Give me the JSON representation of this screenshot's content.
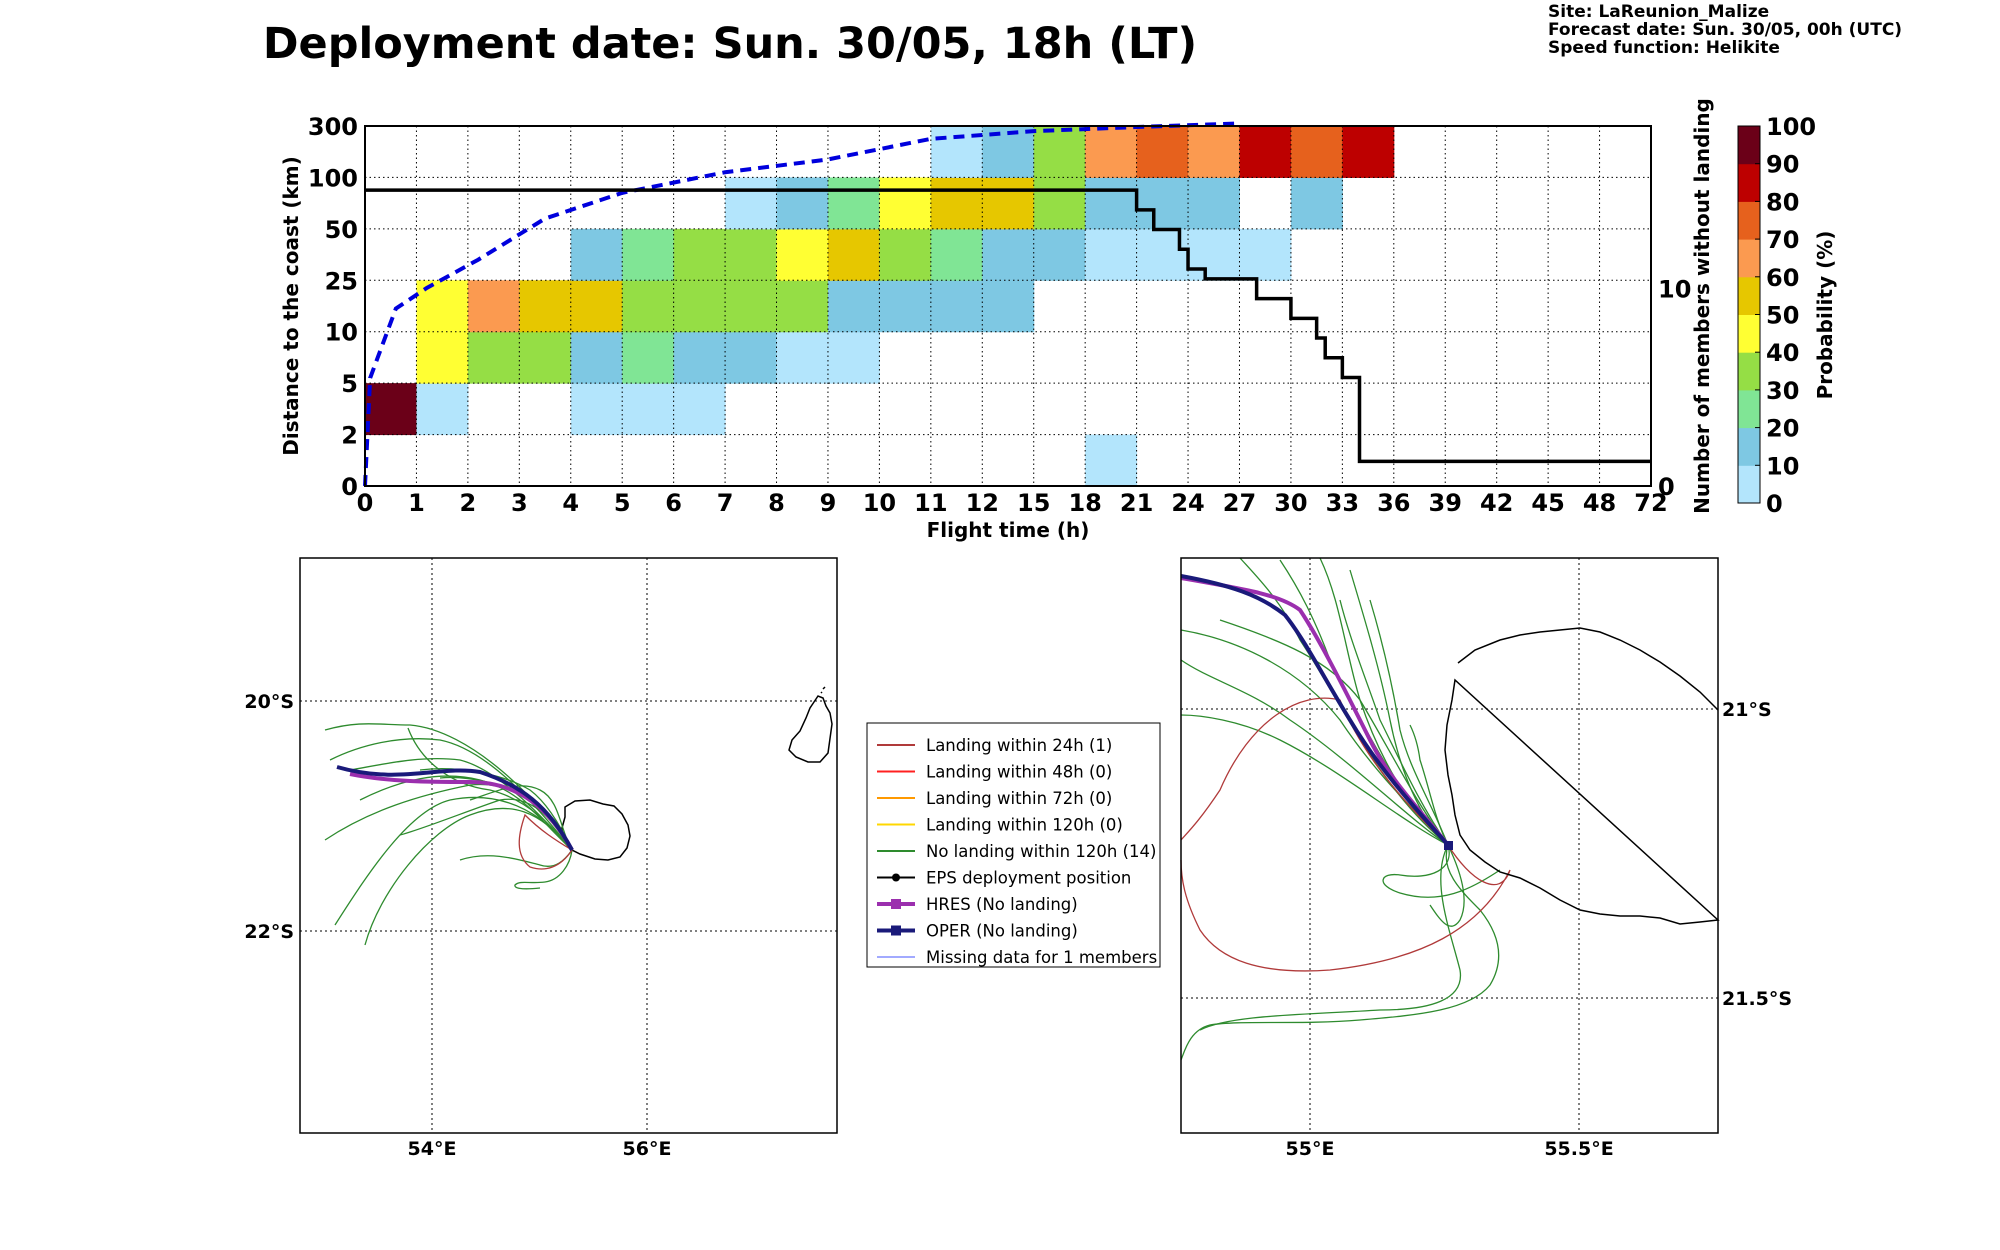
{
  "header": {
    "title": "Deployment date: Sun. 30/05, 18h (LT)",
    "site": "Site: LaReunion_Malize",
    "forecast": "Forecast date: Sun. 30/05, 00h (UTC)",
    "speed": "Speed function: Helikite"
  },
  "chart_data": [
    {
      "type": "heatmap",
      "xlabel": "Flight time (h)",
      "ylabel": "Distance to the coast (km)",
      "ylabel_right": "Number of members without landing",
      "colorbar_label": "Probability (%)",
      "x_ticks": [
        "0",
        "1",
        "2",
        "3",
        "4",
        "5",
        "6",
        "7",
        "8",
        "9",
        "10",
        "11",
        "12",
        "15",
        "18",
        "21",
        "24",
        "27",
        "30",
        "33",
        "36",
        "39",
        "42",
        "45",
        "48",
        "72"
      ],
      "y_ticks": [
        "0",
        "2",
        "5",
        "10",
        "25",
        "50",
        "100",
        "300"
      ],
      "right_ticks": [
        {
          "label": "10",
          "value": 10
        },
        {
          "label": "0",
          "value": 0
        }
      ],
      "right_ylim": [
        0,
        18.25
      ],
      "colorbar_ticks": [
        "0",
        "10",
        "20",
        "30",
        "40",
        "50",
        "60",
        "70",
        "80",
        "90",
        "100"
      ],
      "colorbar_colors": [
        "#b3e5fc",
        "#7ec8e3",
        "#80e595",
        "#95de45",
        "#ffff33",
        "#e6c700",
        "#fb9a50",
        "#e6611d",
        "#bd0000",
        "#6b0018"
      ],
      "grid": true,
      "cells": [
        {
          "c": 0,
          "r": 1,
          "p": 100
        },
        {
          "c": 1,
          "r": 1,
          "p": 5
        },
        {
          "c": 1,
          "r": 2,
          "p": 40
        },
        {
          "c": 1,
          "r": 3,
          "p": 40
        },
        {
          "c": 2,
          "r": 2,
          "p": 30
        },
        {
          "c": 2,
          "r": 3,
          "p": 60
        },
        {
          "c": 3,
          "r": 2,
          "p": 30
        },
        {
          "c": 3,
          "r": 3,
          "p": 50
        },
        {
          "c": 4,
          "r": 1,
          "p": 5
        },
        {
          "c": 4,
          "r": 2,
          "p": 10
        },
        {
          "c": 4,
          "r": 3,
          "p": 50
        },
        {
          "c": 4,
          "r": 4,
          "p": 10
        },
        {
          "c": 5,
          "r": 1,
          "p": 5
        },
        {
          "c": 5,
          "r": 2,
          "p": 20
        },
        {
          "c": 5,
          "r": 3,
          "p": 30
        },
        {
          "c": 5,
          "r": 4,
          "p": 20
        },
        {
          "c": 6,
          "r": 1,
          "p": 5
        },
        {
          "c": 6,
          "r": 2,
          "p": 10
        },
        {
          "c": 6,
          "r": 3,
          "p": 30
        },
        {
          "c": 6,
          "r": 4,
          "p": 30
        },
        {
          "c": 7,
          "r": 2,
          "p": 10
        },
        {
          "c": 7,
          "r": 3,
          "p": 30
        },
        {
          "c": 7,
          "r": 4,
          "p": 30
        },
        {
          "c": 7,
          "r": 5,
          "p": 5
        },
        {
          "c": 8,
          "r": 2,
          "p": 5
        },
        {
          "c": 8,
          "r": 3,
          "p": 30
        },
        {
          "c": 8,
          "r": 4,
          "p": 40
        },
        {
          "c": 8,
          "r": 5,
          "p": 10
        },
        {
          "c": 9,
          "r": 2,
          "p": 5
        },
        {
          "c": 9,
          "r": 3,
          "p": 10
        },
        {
          "c": 9,
          "r": 4,
          "p": 50
        },
        {
          "c": 9,
          "r": 5,
          "p": 20
        },
        {
          "c": 10,
          "r": 3,
          "p": 10
        },
        {
          "c": 10,
          "r": 4,
          "p": 30
        },
        {
          "c": 10,
          "r": 5,
          "p": 40
        },
        {
          "c": 11,
          "r": 3,
          "p": 10
        },
        {
          "c": 11,
          "r": 4,
          "p": 20
        },
        {
          "c": 11,
          "r": 5,
          "p": 50
        },
        {
          "c": 11,
          "r": 6,
          "p": 5
        },
        {
          "c": 12,
          "r": 3,
          "p": 10
        },
        {
          "c": 12,
          "r": 4,
          "p": 10
        },
        {
          "c": 12,
          "r": 5,
          "p": 50
        },
        {
          "c": 12,
          "r": 6,
          "p": 10
        },
        {
          "c": 13,
          "r": 4,
          "p": 10
        },
        {
          "c": 13,
          "r": 5,
          "p": 30
        },
        {
          "c": 13,
          "r": 6,
          "p": 30
        },
        {
          "c": 14,
          "r": 0,
          "p": 5
        },
        {
          "c": 14,
          "r": 4,
          "p": 5
        },
        {
          "c": 14,
          "r": 5,
          "p": 10
        },
        {
          "c": 14,
          "r": 6,
          "p": 60
        },
        {
          "c": 15,
          "r": 4,
          "p": 5
        },
        {
          "c": 15,
          "r": 5,
          "p": 10
        },
        {
          "c": 15,
          "r": 6,
          "p": 70
        },
        {
          "c": 16,
          "r": 4,
          "p": 5
        },
        {
          "c": 16,
          "r": 5,
          "p": 10
        },
        {
          "c": 16,
          "r": 6,
          "p": 60
        },
        {
          "c": 17,
          "r": 4,
          "p": 5
        },
        {
          "c": 17,
          "r": 6,
          "p": 80
        },
        {
          "c": 18,
          "r": 5,
          "p": 10
        },
        {
          "c": 18,
          "r": 6,
          "p": 70
        },
        {
          "c": 19,
          "r": 6,
          "p": 80
        }
      ],
      "median_distance_line": {
        "style": "dashed",
        "color": "#0000dd",
        "points": [
          [
            0,
            0
          ],
          [
            0.1,
            2.1
          ],
          [
            0.6,
            3.45
          ],
          [
            1.2,
            3.85
          ],
          [
            2.2,
            4.4
          ],
          [
            3.5,
            5.2
          ],
          [
            5,
            5.7
          ],
          [
            7,
            6.1
          ],
          [
            9,
            6.35
          ],
          [
            11,
            6.75
          ],
          [
            13,
            6.9
          ],
          [
            15,
            6.98
          ],
          [
            17,
            7.05
          ]
        ]
      },
      "members_without_landing": {
        "color": "#000000",
        "steps": [
          [
            0,
            15
          ],
          [
            21,
            15
          ],
          [
            21,
            14
          ],
          [
            22,
            14
          ],
          [
            22,
            13
          ],
          [
            23.5,
            13
          ],
          [
            23.5,
            12
          ],
          [
            24,
            12
          ],
          [
            24,
            11
          ],
          [
            25,
            11
          ],
          [
            25,
            10.5
          ],
          [
            28,
            10.5
          ],
          [
            28,
            9.5
          ],
          [
            30,
            9.5
          ],
          [
            30,
            8.5
          ],
          [
            31.5,
            8.5
          ],
          [
            31.5,
            7.5
          ],
          [
            32,
            7.5
          ],
          [
            32,
            6.5
          ],
          [
            33,
            6.5
          ],
          [
            33,
            5.5
          ],
          [
            34,
            5.5
          ],
          [
            34,
            1.25
          ],
          [
            72,
            1.25
          ]
        ]
      }
    }
  ],
  "maps": {
    "left": {
      "lon_labels": [
        {
          "label": "54°E",
          "value": 54
        },
        {
          "label": "56°E",
          "value": 56
        }
      ],
      "lat_labels": [
        {
          "label": "20°S",
          "value": -20
        },
        {
          "label": "22°S",
          "value": -22
        }
      ]
    },
    "right": {
      "lon_labels": [
        {
          "label": "55°E",
          "value": 55
        },
        {
          "label": "55.5°E",
          "value": 55.5
        }
      ],
      "lat_labels": [
        {
          "label": "21°S",
          "value": -21
        },
        {
          "label": "21.5°S",
          "value": -21.5
        }
      ]
    }
  },
  "legend": {
    "items": [
      {
        "label": "Landing within 24h (1)",
        "color": "#b03a3a",
        "marker": "none",
        "width": 2
      },
      {
        "label": "Landing within 48h (0)",
        "color": "#ff2020",
        "marker": "none",
        "width": 2
      },
      {
        "label": "Landing within 72h (0)",
        "color": "#ff9900",
        "marker": "none",
        "width": 2
      },
      {
        "label": "Landing within 120h (0)",
        "color": "#ffd700",
        "marker": "none",
        "width": 2
      },
      {
        "label": "No landing within 120h (14)",
        "color": "#2e8b2e",
        "marker": "none",
        "width": 2
      },
      {
        "label": "EPS deployment position",
        "color": "#000000",
        "marker": "circle",
        "width": 2
      },
      {
        "label": "HRES (No landing)",
        "color": "#9b2fae",
        "marker": "square",
        "width": 4
      },
      {
        "label": "OPER (No landing)",
        "color": "#1a1a7a",
        "marker": "square",
        "width": 4
      },
      {
        "label": "Missing data for 1 members",
        "color": "#4455ff",
        "marker": "none",
        "width": 1
      }
    ]
  }
}
